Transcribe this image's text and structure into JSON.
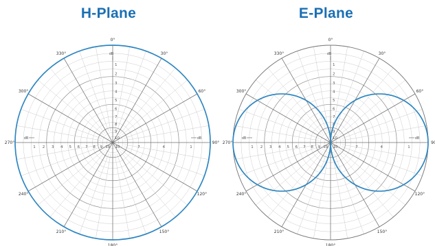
{
  "chart_data": [
    {
      "type": "polar",
      "title": "H-Plane",
      "unit": "dB",
      "angle_labels": [
        "0°",
        "30°",
        "60°",
        "90°",
        "120°",
        "150°",
        "180°",
        "210°",
        "240°",
        "270°",
        "300°",
        "330°"
      ],
      "radial_ticks": [
        "1",
        "2",
        "3",
        "4",
        "5",
        "6",
        "7",
        "8",
        "9",
        "10"
      ],
      "series": [
        {
          "color": "#2e86c1",
          "points": [
            {
              "angle": 0,
              "r": 1.0
            },
            {
              "angle": 30,
              "r": 1.0
            },
            {
              "angle": 60,
              "r": 1.0
            },
            {
              "angle": 90,
              "r": 1.0
            },
            {
              "angle": 120,
              "r": 1.0
            },
            {
              "angle": 150,
              "r": 1.0
            },
            {
              "angle": 180,
              "r": 1.0
            },
            {
              "angle": 210,
              "r": 1.0
            },
            {
              "angle": 240,
              "r": 1.0
            },
            {
              "angle": 270,
              "r": 1.0
            },
            {
              "angle": 300,
              "r": 1.0
            },
            {
              "angle": 330,
              "r": 1.0
            }
          ]
        }
      ]
    },
    {
      "type": "polar",
      "title": "E-Plane",
      "unit": "dB",
      "angle_labels": [
        "0°",
        "30°",
        "60°",
        "90",
        "120°",
        "150°",
        "180°",
        "210°",
        "240°",
        "270°",
        "300°",
        "330°"
      ],
      "radial_ticks": [
        "1",
        "2",
        "3",
        "4",
        "5",
        "6",
        "7",
        "8",
        "9",
        "10"
      ],
      "series": [
        {
          "color": "#2e86c1",
          "points": [
            {
              "angle": 0,
              "r": 0.0
            },
            {
              "angle": 15,
              "r": 0.26
            },
            {
              "angle": 30,
              "r": 0.5
            },
            {
              "angle": 45,
              "r": 0.71
            },
            {
              "angle": 60,
              "r": 0.87
            },
            {
              "angle": 75,
              "r": 0.97
            },
            {
              "angle": 90,
              "r": 1.0
            },
            {
              "angle": 105,
              "r": 0.97
            },
            {
              "angle": 120,
              "r": 0.87
            },
            {
              "angle": 135,
              "r": 0.71
            },
            {
              "angle": 150,
              "r": 0.5
            },
            {
              "angle": 165,
              "r": 0.26
            },
            {
              "angle": 180,
              "r": 0.0
            },
            {
              "angle": 195,
              "r": 0.26
            },
            {
              "angle": 210,
              "r": 0.5
            },
            {
              "angle": 225,
              "r": 0.71
            },
            {
              "angle": 240,
              "r": 0.87
            },
            {
              "angle": 255,
              "r": 0.97
            },
            {
              "angle": 270,
              "r": 1.0
            },
            {
              "angle": 285,
              "r": 0.97
            },
            {
              "angle": 300,
              "r": 0.87
            },
            {
              "angle": 315,
              "r": 0.71
            },
            {
              "angle": 330,
              "r": 0.5
            },
            {
              "angle": 345,
              "r": 0.26
            }
          ]
        }
      ]
    }
  ]
}
